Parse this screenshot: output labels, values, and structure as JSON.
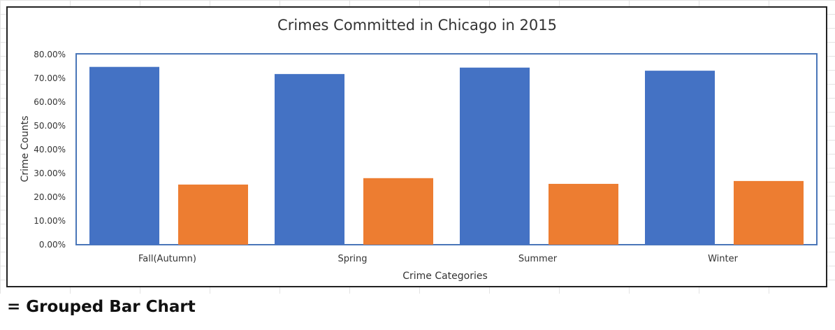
{
  "caption": "= Grouped Bar Chart",
  "chart_data": {
    "type": "bar",
    "title": "Crimes Committed in Chicago in 2015",
    "xlabel": "Crime Categories",
    "ylabel": "Crime Counts",
    "categories": [
      "Fall(Autumn)",
      "Spring",
      "Summer",
      "Winter"
    ],
    "series": [
      {
        "values": [
          74.8,
          71.8,
          74.5,
          73.2
        ],
        "color": "#4472c4"
      },
      {
        "values": [
          25.3,
          28.0,
          25.6,
          26.8
        ],
        "color": "#ed7d31"
      }
    ],
    "ylim": [
      0,
      80
    ],
    "yticks": [
      "0.00%",
      "10.00%",
      "20.00%",
      "30.00%",
      "40.00%",
      "50.00%",
      "60.00%",
      "70.00%",
      "80.00%"
    ],
    "plot_area_border_color": "#4a76b8",
    "legend": "none"
  }
}
